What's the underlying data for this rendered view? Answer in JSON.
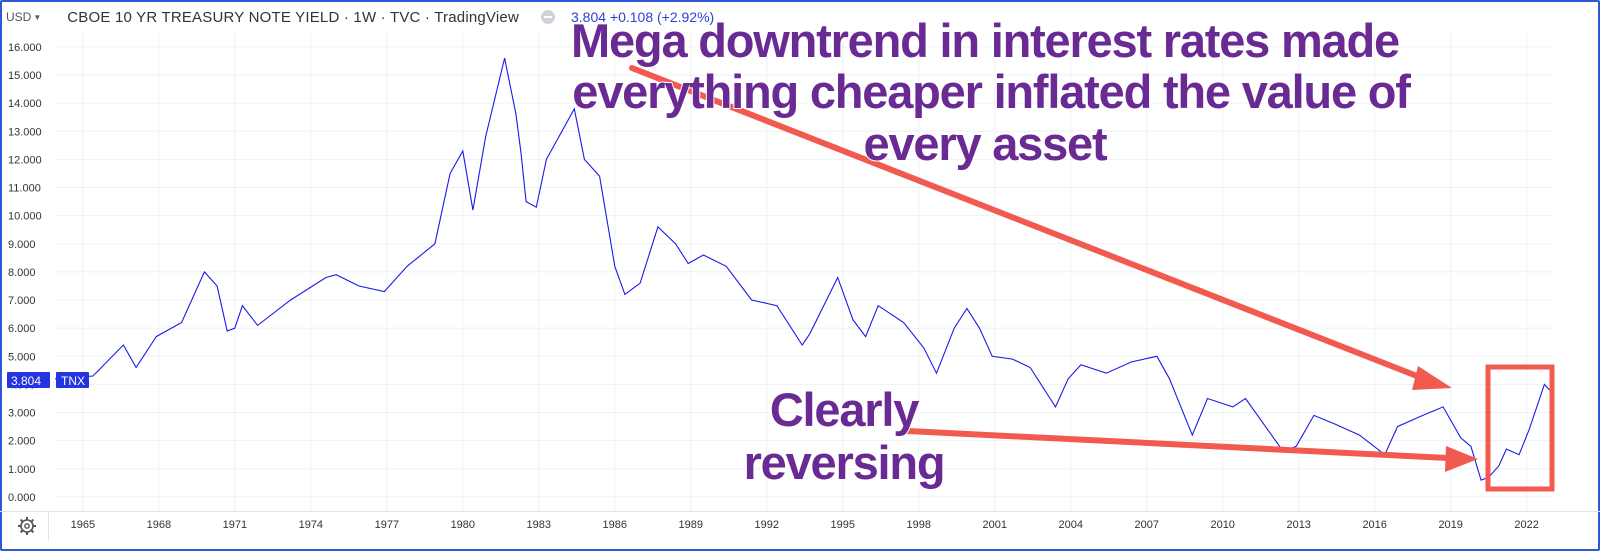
{
  "header": {
    "currency": "USD",
    "title": "CBOE 10 YR TREASURY NOTE YIELD · 1W · TVC · TradingView",
    "quote": "3.804  +0.108 (+2.92%)"
  },
  "price_tag": {
    "value": "3.804",
    "symbol": "TNX"
  },
  "annotations": {
    "top_text": [
      "Mega downtrend in interest rates made",
      "everything cheaper inflated the value of",
      "every asset"
    ],
    "bottom_text": [
      "Clearly",
      "reversing"
    ]
  },
  "colors": {
    "line": "#1a1ae8",
    "accent": "#2f57d8",
    "annotation_fill": "#6a2a93",
    "arrow": "#f05a4f",
    "grid": "#eef1f6"
  },
  "icons": {
    "settings": "gear-icon"
  },
  "chart_data": {
    "type": "line",
    "title": "CBOE 10 YR TREASURY NOTE YIELD",
    "interval": "1W",
    "xlabel": "",
    "ylabel": "",
    "ylim": [
      -0.5,
      16.6
    ],
    "xlim": [
      1964.0,
      2023.1
    ],
    "grid": true,
    "yticks": [
      "0.000",
      "1.000",
      "2.000",
      "3.000",
      "4.000",
      "5.000",
      "6.000",
      "7.000",
      "8.000",
      "9.000",
      "10.000",
      "11.000",
      "12.000",
      "13.000",
      "14.000",
      "15.000",
      "16.000"
    ],
    "xticks": [
      "1965",
      "1968",
      "1971",
      "1974",
      "1977",
      "1980",
      "1983",
      "1986",
      "1989",
      "1992",
      "1995",
      "1998",
      "2001",
      "2004",
      "2007",
      "2010",
      "2013",
      "2016",
      "2019",
      "2022"
    ],
    "last_value": 3.804,
    "series": [
      {
        "x": [
          1964.0,
          1965.5,
          1966.7,
          1967.2,
          1968.0,
          1969.0,
          1969.9,
          1970.4,
          1970.8,
          1971.1,
          1971.4,
          1972.0,
          1973.3,
          1974.7,
          1975.1,
          1976.0,
          1977.0,
          1977.9,
          1979.0,
          1979.6,
          1980.1,
          1980.5,
          1981.0,
          1981.75,
          1982.2,
          1982.4,
          1982.6,
          1983.0,
          1983.4,
          1984.5,
          1984.9,
          1985.5,
          1986.1,
          1986.5,
          1987.1,
          1987.8,
          1988.5,
          1989.0,
          1989.6,
          1990.5,
          1991.5,
          1992.5,
          1993.5,
          1993.8,
          1994.9,
          1995.5,
          1996.0,
          1996.5,
          1997.5,
          1998.3,
          1998.8,
          1999.5,
          2000.0,
          2000.5,
          2001.0,
          2001.8,
          2002.5,
          2003.5,
          2004.0,
          2004.5,
          2005.5,
          2006.5,
          2007.5,
          2008.0,
          2008.9,
          2009.5,
          2010.5,
          2011.0,
          2012.5,
          2013.0,
          2013.7,
          2014.5,
          2015.5,
          2016.5,
          2017.0,
          2018.0,
          2018.8,
          2019.5,
          2019.9,
          2020.3,
          2020.6,
          2021.0,
          2021.3,
          2021.8,
          2022.2,
          2022.8,
          2023.0
        ],
        "y": [
          4.2,
          4.3,
          5.4,
          4.6,
          5.7,
          6.2,
          8.0,
          7.5,
          5.9,
          6.0,
          6.8,
          6.1,
          7.0,
          7.8,
          7.9,
          7.5,
          7.3,
          8.2,
          9.0,
          11.5,
          12.3,
          10.2,
          12.8,
          15.6,
          13.6,
          12.2,
          10.5,
          10.3,
          12.0,
          13.8,
          12.0,
          11.4,
          8.2,
          7.2,
          7.6,
          9.6,
          9.0,
          8.3,
          8.6,
          8.2,
          7.0,
          6.8,
          5.4,
          5.8,
          7.8,
          6.3,
          5.7,
          6.8,
          6.2,
          5.3,
          4.4,
          6.0,
          6.7,
          6.0,
          5.0,
          4.9,
          4.6,
          3.2,
          4.2,
          4.7,
          4.4,
          4.8,
          5.0,
          4.2,
          2.2,
          3.5,
          3.2,
          3.5,
          1.6,
          1.8,
          2.9,
          2.6,
          2.2,
          1.5,
          2.5,
          2.9,
          3.2,
          2.1,
          1.8,
          0.6,
          0.7,
          1.1,
          1.7,
          1.5,
          2.4,
          4.0,
          3.8
        ]
      }
    ]
  }
}
